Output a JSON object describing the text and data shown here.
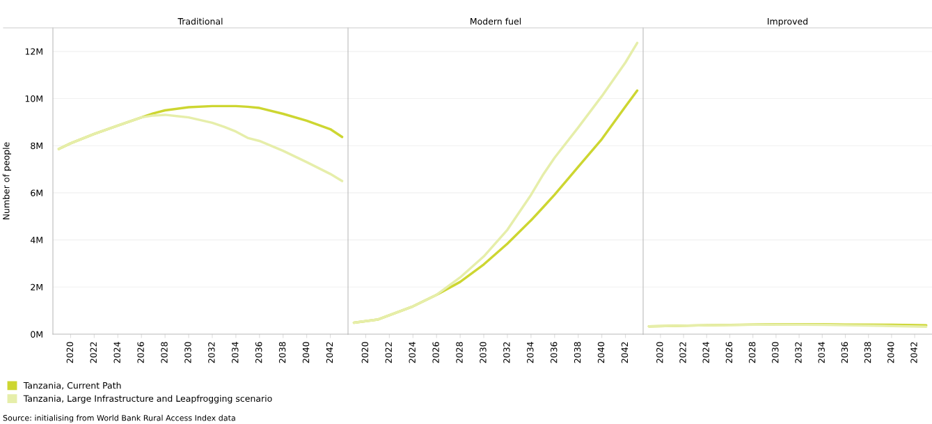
{
  "chart_data": [
    {
      "type": "line",
      "title": "Traditional",
      "ylabel": "Number of people",
      "ylim": [
        0,
        13
      ],
      "yticks": [
        {
          "value": 0,
          "label": "0M"
        },
        {
          "value": 2,
          "label": "2M"
        },
        {
          "value": 4,
          "label": "4M"
        },
        {
          "value": 6,
          "label": "6M"
        },
        {
          "value": 8,
          "label": "8M"
        },
        {
          "value": 10,
          "label": "10M"
        },
        {
          "value": 12,
          "label": "12M"
        }
      ],
      "xlim": [
        2018.5,
        2043.5
      ],
      "xticks": [
        2020,
        2022,
        2024,
        2026,
        2028,
        2030,
        2032,
        2034,
        2036,
        2038,
        2040,
        2042
      ],
      "grid": "y",
      "legend": "bottom",
      "x": [
        2019,
        2020,
        2022,
        2024,
        2026,
        2027,
        2028,
        2030,
        2032,
        2033,
        2034,
        2035,
        2036,
        2038,
        2040,
        2042,
        2043
      ],
      "series": [
        {
          "name": "Tanzania, Current Path",
          "color": "#cdd631",
          "values": [
            7.86,
            8.1,
            8.5,
            8.85,
            9.2,
            9.37,
            9.5,
            9.63,
            9.68,
            9.68,
            9.68,
            9.65,
            9.6,
            9.35,
            9.06,
            8.7,
            8.37
          ]
        },
        {
          "name": "Tanzania, Large Infrastructure and Leapfrogging scenario",
          "color": "#e6eeaa",
          "values": [
            7.86,
            8.1,
            8.5,
            8.85,
            9.2,
            9.28,
            9.31,
            9.2,
            8.97,
            8.8,
            8.6,
            8.33,
            8.2,
            7.78,
            7.3,
            6.8,
            6.5
          ]
        }
      ],
      "annotations": [
        "Source: initialising from World Bank Rural Access Index data"
      ]
    },
    {
      "type": "line",
      "title": "Modern fuel",
      "ylim": [
        0,
        13
      ],
      "tick_labels": "x",
      "xlim": [
        2018.5,
        2043.5
      ],
      "xticks": [
        2020,
        2022,
        2024,
        2026,
        2028,
        2030,
        2032,
        2034,
        2036,
        2038,
        2040,
        2042
      ],
      "grid": "y",
      "x": [
        2019,
        2021,
        2024,
        2026,
        2028,
        2030,
        2032,
        2034,
        2035,
        2036,
        2038,
        2040,
        2042,
        2043
      ],
      "series": [
        {
          "color": "#cdd631",
          "values": [
            0.49,
            0.62,
            1.18,
            1.67,
            2.22,
            2.96,
            3.84,
            4.83,
            5.37,
            5.92,
            7.1,
            8.28,
            9.66,
            10.34
          ]
        },
        {
          "color": "#e6eeaa",
          "values": [
            0.49,
            0.62,
            1.18,
            1.67,
            2.41,
            3.3,
            4.43,
            5.91,
            6.75,
            7.49,
            8.77,
            10.1,
            11.53,
            12.36
          ]
        }
      ]
    },
    {
      "type": "line",
      "title": "Improved",
      "ylim": [
        0,
        13
      ],
      "tick_labels": "x",
      "xlim": [
        2018.5,
        2043.5
      ],
      "xticks": [
        2020,
        2022,
        2024,
        2026,
        2028,
        2030,
        2032,
        2034,
        2036,
        2038,
        2040,
        2042
      ],
      "grid": "y",
      "x": [
        2019,
        2024,
        2030,
        2034,
        2036,
        2040,
        2043
      ],
      "series": [
        {
          "color": "#cdd631",
          "values": [
            0.33,
            0.38,
            0.42,
            0.42,
            0.41,
            0.4,
            0.38
          ]
        },
        {
          "color": "#e6eeaa",
          "values": [
            0.33,
            0.38,
            0.41,
            0.4,
            0.38,
            0.35,
            0.32
          ]
        }
      ]
    }
  ]
}
